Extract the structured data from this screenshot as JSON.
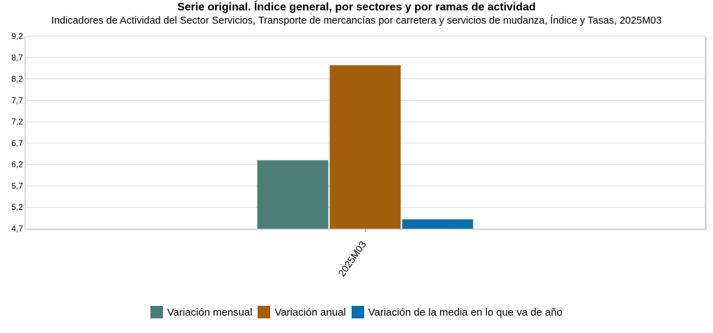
{
  "chart_data": {
    "type": "bar",
    "title": "Serie original. Índice general, por sectores y por ramas de actividad",
    "subtitle": "Indicadores de Actividad del Sector Servicios, Transporte de mercancías por carretera y servicios de mudanza, Índice y Tasas, 2025M03",
    "categories": [
      "2025M03"
    ],
    "series": [
      {
        "name": "Variación mensual",
        "color": "#4A7E76",
        "values": [
          6.3
        ]
      },
      {
        "name": "Variación anual",
        "color": "#A35E0C",
        "values": [
          8.52
        ]
      },
      {
        "name": "Variación de la media en lo que va de año",
        "color": "#0A6FAE",
        "values": [
          4.92
        ]
      }
    ],
    "ylim": [
      4.7,
      9.2
    ],
    "yticks": [
      "9,2",
      "8,7",
      "8,2",
      "7,7",
      "7,2",
      "6,7",
      "6,2",
      "5,7",
      "5,2",
      "4,7"
    ],
    "grid": true,
    "legend_position": "bottom"
  }
}
